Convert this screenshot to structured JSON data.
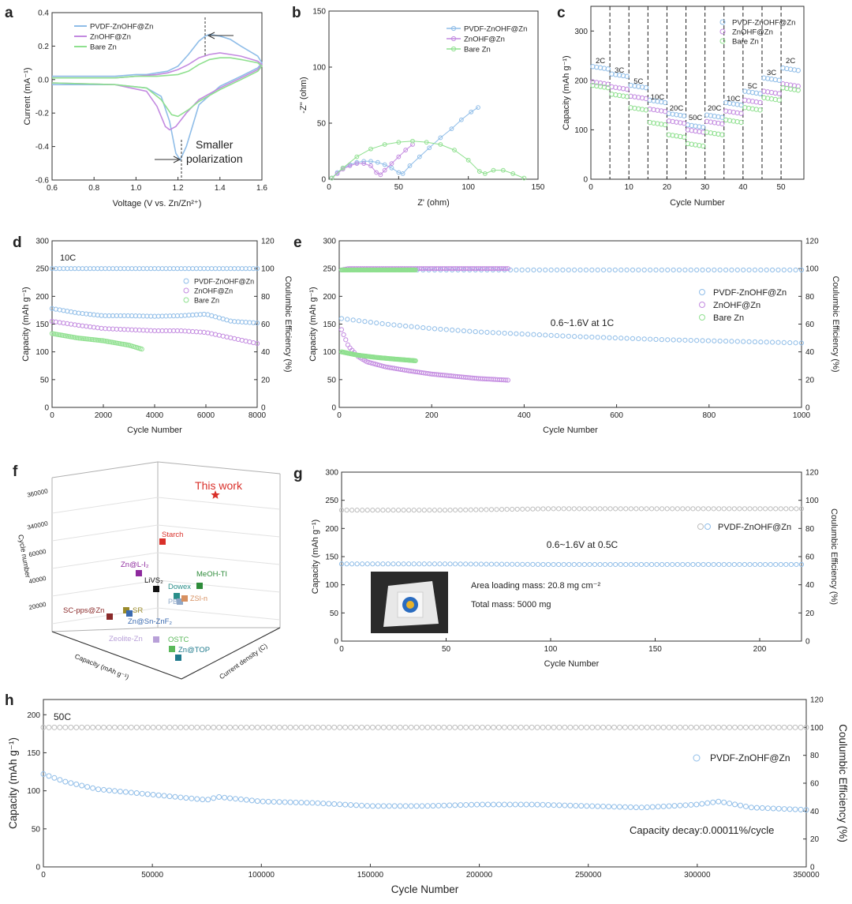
{
  "colors": {
    "pvdf": "#8fbde8",
    "znohf": "#c38ae0",
    "bare": "#8fe08f",
    "text": "#222222",
    "ce": "#bdbdbd",
    "red": "#d9302a"
  },
  "chart_data": [
    {
      "panel": "a",
      "type": "line",
      "xlabel": "Voltage (V vs. Zn/Zn²⁺)",
      "ylabel": "Current (mA⁻¹)",
      "xlim": [
        0.6,
        1.6
      ],
      "ylim": [
        -0.6,
        0.4
      ],
      "xticks": [
        "0.6",
        "0.8",
        "1.0",
        "1.2",
        "1.4",
        "1.6"
      ],
      "yticks": [
        "0.4",
        "0.2",
        "0.0",
        "-0.2",
        "-0.4",
        "-0.6"
      ],
      "annotation": [
        "Smaller",
        "polarization"
      ],
      "legend": "top-left",
      "series": [
        {
          "name": "PVDF-ZnOHF@Zn",
          "color_key": "pvdf",
          "x": [
            0.6,
            0.9,
            1.05,
            1.12,
            1.16,
            1.19,
            1.21,
            1.24,
            1.3,
            1.4,
            1.5,
            1.58,
            1.6,
            1.58,
            1.5,
            1.45,
            1.4,
            1.35,
            1.33,
            1.3,
            1.25,
            1.2,
            1.15,
            1.1,
            1.05,
            1.0,
            0.9,
            0.6
          ],
          "y": [
            -0.03,
            -0.03,
            -0.05,
            -0.1,
            -0.25,
            -0.44,
            -0.48,
            -0.4,
            -0.15,
            -0.04,
            0.02,
            0.07,
            0.1,
            0.14,
            0.2,
            0.24,
            0.26,
            0.27,
            0.26,
            0.23,
            0.15,
            0.08,
            0.05,
            0.04,
            0.03,
            0.03,
            0.02,
            0.02
          ]
        },
        {
          "name": "ZnOHF@Zn",
          "color_key": "znohf",
          "x": [
            0.6,
            0.9,
            1.05,
            1.1,
            1.14,
            1.16,
            1.19,
            1.24,
            1.3,
            1.4,
            1.5,
            1.58,
            1.6,
            1.58,
            1.5,
            1.45,
            1.4,
            1.35,
            1.3,
            1.25,
            1.2,
            1.15,
            1.1,
            1.0,
            0.9,
            0.6
          ],
          "y": [
            -0.02,
            -0.03,
            -0.07,
            -0.16,
            -0.28,
            -0.3,
            -0.28,
            -0.2,
            -0.12,
            -0.05,
            0.01,
            0.06,
            0.09,
            0.11,
            0.14,
            0.15,
            0.16,
            0.15,
            0.13,
            0.09,
            0.06,
            0.04,
            0.03,
            0.02,
            0.01,
            0.01
          ]
        },
        {
          "name": "Bare Zn",
          "color_key": "bare",
          "x": [
            0.6,
            0.9,
            1.05,
            1.12,
            1.17,
            1.2,
            1.25,
            1.3,
            1.4,
            1.5,
            1.58,
            1.6,
            1.58,
            1.5,
            1.45,
            1.4,
            1.35,
            1.3,
            1.25,
            1.2,
            1.1,
            1.0,
            0.9,
            0.6
          ],
          "y": [
            -0.02,
            -0.03,
            -0.05,
            -0.12,
            -0.21,
            -0.22,
            -0.18,
            -0.13,
            -0.06,
            0.0,
            0.05,
            0.08,
            0.1,
            0.12,
            0.13,
            0.13,
            0.12,
            0.09,
            0.05,
            0.03,
            0.02,
            0.02,
            0.01,
            0.01
          ]
        }
      ]
    },
    {
      "panel": "b",
      "type": "scatter",
      "xlabel": "Z' (ohm)",
      "ylabel": "-Z'' (ohm)",
      "xlim": [
        0,
        150
      ],
      "ylim": [
        0,
        150
      ],
      "xticks": [
        "0",
        "50",
        "100",
        "150"
      ],
      "yticks": [
        "150",
        "100",
        "50",
        "0"
      ],
      "legend": "top-right",
      "series": [
        {
          "name": "PVDF-ZnOHF@Zn",
          "color_key": "pvdf",
          "x": [
            2,
            6,
            10,
            15,
            20,
            25,
            30,
            35,
            40,
            45,
            50,
            53,
            58,
            65,
            72,
            80,
            88,
            95,
            102,
            107
          ],
          "y": [
            1,
            6,
            10,
            13,
            15,
            16,
            16,
            15,
            13,
            10,
            6,
            5,
            12,
            20,
            28,
            37,
            45,
            53,
            60,
            64
          ]
        },
        {
          "name": "ZnOHF@Zn",
          "color_key": "znohf",
          "x": [
            2,
            6,
            10,
            15,
            20,
            25,
            30,
            34,
            37,
            40,
            45,
            50,
            55,
            60
          ],
          "y": [
            1,
            5,
            9,
            12,
            14,
            14,
            12,
            6,
            4,
            8,
            14,
            20,
            26,
            31
          ]
        },
        {
          "name": "Bare Zn",
          "color_key": "bare",
          "x": [
            2,
            10,
            20,
            30,
            40,
            50,
            60,
            70,
            80,
            90,
            100,
            108,
            112,
            118,
            125,
            132,
            140
          ],
          "y": [
            1,
            10,
            20,
            27,
            31,
            33,
            34,
            33,
            31,
            26,
            17,
            7,
            5,
            8,
            8,
            5,
            1
          ]
        }
      ]
    },
    {
      "panel": "c",
      "type": "scatter",
      "xlabel": "Cycle Number",
      "ylabel": "Capacity (mAh g⁻¹)",
      "xlim": [
        0,
        56
      ],
      "ylim": [
        0,
        350
      ],
      "xticks": [
        "0",
        "10",
        "20",
        "30",
        "40",
        "50"
      ],
      "yticks": [
        "300",
        "200",
        "100",
        "0"
      ],
      "rate_labels": [
        "2C",
        "3C",
        "5C",
        "10C",
        "20C",
        "50C",
        "20C",
        "10C",
        "5C",
        "3C",
        "2C"
      ],
      "legend": "top-right",
      "series": [
        {
          "name": "PVDF-ZnOHF@Zn",
          "color_key": "pvdf",
          "segment_values": [
            228,
            213,
            190,
            160,
            133,
            110,
            130,
            155,
            178,
            205,
            225
          ]
        },
        {
          "name": "ZnOHF@Zn",
          "color_key": "znohf",
          "segment_values": [
            197,
            187,
            168,
            142,
            118,
            100,
            117,
            138,
            160,
            178,
            193
          ]
        },
        {
          "name": "Bare Zn",
          "color_key": "bare",
          "segment_values": [
            190,
            172,
            145,
            115,
            90,
            72,
            95,
            120,
            145,
            165,
            185
          ]
        }
      ]
    },
    {
      "panel": "d",
      "type": "scatter",
      "annotation": "10C",
      "xlabel": "Cycle Number",
      "ylabel": "Capacity (mAh g⁻¹)",
      "y2label": "Coulumbic Efficiency (%)",
      "xlim": [
        0,
        8000
      ],
      "ylim": [
        0,
        300
      ],
      "y2lim": [
        0,
        120
      ],
      "xticks": [
        "0",
        "2000",
        "4000",
        "6000",
        "8000"
      ],
      "yticks": [
        "300",
        "250",
        "200",
        "150",
        "100",
        "50",
        "0"
      ],
      "y2ticks": [
        "120",
        "100",
        "80",
        "60",
        "40",
        "20",
        "0"
      ],
      "legend": "right",
      "series": [
        {
          "name": "PVDF-ZnOHF@Zn",
          "color_key": "pvdf",
          "x": [
            0,
            1000,
            2000,
            3000,
            4000,
            5000,
            6000,
            7000,
            8000
          ],
          "capacity": [
            178,
            170,
            165,
            165,
            164,
            165,
            168,
            155,
            152
          ],
          "efficiency": [
            100,
            100,
            100,
            100,
            100,
            100,
            100,
            100,
            100
          ]
        },
        {
          "name": "ZnOHF@Zn",
          "color_key": "znohf",
          "x": [
            0,
            1000,
            2000,
            3000,
            4000,
            5000,
            6000,
            7000,
            8000
          ],
          "capacity": [
            155,
            148,
            142,
            140,
            138,
            138,
            135,
            125,
            115
          ]
        },
        {
          "name": "Bare Zn",
          "color_key": "bare",
          "x": [
            0,
            1000,
            2000,
            3000,
            3500
          ],
          "capacity": [
            133,
            125,
            120,
            112,
            105
          ]
        }
      ]
    },
    {
      "panel": "e",
      "type": "scatter",
      "annotation": "0.6~1.6V at 1C",
      "xlabel": "Cycle Number",
      "ylabel": "Capacity (mAh g⁻¹)",
      "y2label": "Coulumbic Efficiency (%)",
      "xlim": [
        0,
        1000
      ],
      "ylim": [
        0,
        300
      ],
      "y2lim": [
        0,
        120
      ],
      "xticks": [
        "0",
        "200",
        "400",
        "600",
        "800",
        "1000"
      ],
      "yticks": [
        "300",
        "250",
        "200",
        "150",
        "100",
        "50",
        "0"
      ],
      "y2ticks": [
        "120",
        "100",
        "80",
        "60",
        "40",
        "20",
        "0"
      ],
      "legend": "right",
      "series": [
        {
          "name": "PVDF-ZnOHF@Zn",
          "color_key": "pvdf",
          "x": [
            5,
            100,
            200,
            300,
            400,
            500,
            600,
            700,
            800,
            900,
            1000
          ],
          "capacity": [
            160,
            150,
            142,
            136,
            132,
            128,
            125,
            122,
            120,
            118,
            116
          ],
          "efficiency": [
            99,
            99,
            99,
            99,
            99,
            99,
            99,
            99,
            99,
            99,
            99
          ]
        },
        {
          "name": "ZnOHF@Zn",
          "color_key": "znohf",
          "x": [
            5,
            20,
            40,
            60,
            100,
            150,
            200,
            250,
            300,
            365
          ],
          "capacity": [
            140,
            110,
            92,
            82,
            73,
            66,
            60,
            56,
            52,
            49
          ],
          "efficiency": [
            99,
            100,
            100,
            100,
            100,
            100,
            100,
            100,
            100,
            100
          ]
        },
        {
          "name": "Bare Zn",
          "color_key": "bare",
          "x": [
            5,
            40,
            80,
            120,
            165
          ],
          "capacity": [
            100,
            94,
            90,
            87,
            84
          ],
          "efficiency": [
            99,
            99,
            99,
            99,
            99
          ]
        }
      ]
    },
    {
      "panel": "f",
      "type": "scatter",
      "xlabel": "Capacity (mAh g⁻¹)",
      "ylabel": "Cycle number",
      "zlabel": "Current density (C)",
      "zticks": [
        "20000",
        "40000",
        "60000",
        "340000",
        "360000"
      ],
      "points": [
        {
          "label": "This work",
          "color": "#d9302a",
          "marker": "star"
        },
        {
          "label": "Starch",
          "color": "#d9302a"
        },
        {
          "label": "Zn@L-I₂",
          "color": "#8e2a9e"
        },
        {
          "label": "MeOH-TI",
          "color": "#2e8b3a"
        },
        {
          "label": "LiVS₂",
          "color": "#111111"
        },
        {
          "label": "Dowex",
          "color": "#2a8f8a"
        },
        {
          "label": "PBI",
          "color": "#8fa8c8"
        },
        {
          "label": "ZSI-n",
          "color": "#d79060"
        },
        {
          "label": "SC-pps@Zn",
          "color": "#8a2a2a"
        },
        {
          "label": "SR",
          "color": "#9a8a2a"
        },
        {
          "label": "Zn@Sn-ZnF₂",
          "color": "#3a6ab0"
        },
        {
          "label": "Zeolite-Zn",
          "color": "#b8a0d8"
        },
        {
          "label": "OSTC",
          "color": "#5ab85a"
        },
        {
          "label": "Zn@TOP",
          "color": "#1f7a8c"
        }
      ]
    },
    {
      "panel": "g",
      "type": "scatter",
      "annotation": "0.6~1.6V at 0.5C",
      "info": [
        "Area loading mass: 20.8 mg cm⁻²",
        "Total mass:  5000 mg"
      ],
      "xlabel": "Cycle Number",
      "ylabel": "Capacity (mAh g⁻¹)",
      "y2label": "Coulumbic Efficiency (%)",
      "xlim": [
        0,
        220
      ],
      "ylim": [
        0,
        300
      ],
      "y2lim": [
        0,
        120
      ],
      "xticks": [
        "0",
        "50",
        "100",
        "150",
        "200"
      ],
      "yticks": [
        "300",
        "250",
        "200",
        "150",
        "100",
        "50",
        "0"
      ],
      "y2ticks": [
        "120",
        "100",
        "80",
        "60",
        "40",
        "20",
        "0"
      ],
      "legend": "right",
      "series": [
        {
          "name": "PVDF-ZnOHF@Zn",
          "color_key": "pvdf",
          "x": [
            0,
            50,
            100,
            150,
            220
          ],
          "capacity": [
            137,
            137,
            136,
            136,
            136
          ],
          "efficiency": [
            93,
            93,
            94,
            94,
            94
          ]
        }
      ]
    },
    {
      "panel": "h",
      "type": "scatter",
      "annotation": "50C",
      "note": "Capacity decay:0.00011%/cycle",
      "xlabel": "Cycle Number",
      "ylabel": "Capacity (mAh g⁻¹)",
      "y2label": "Coulumbic Efficiency (%)",
      "xlim": [
        0,
        350000
      ],
      "ylim": [
        0,
        220
      ],
      "y2lim": [
        0,
        120
      ],
      "xticks": [
        "0",
        "50000",
        "100000",
        "150000",
        "200000",
        "250000",
        "300000",
        "350000"
      ],
      "yticks": [
        "200",
        "150",
        "100",
        "50",
        "0"
      ],
      "y2ticks": [
        "120",
        "100",
        "80",
        "60",
        "40",
        "20",
        "0"
      ],
      "legend": "right",
      "series": [
        {
          "name": "PVDF-ZnOHF@Zn",
          "color_key": "pvdf",
          "x": [
            0,
            10000,
            25000,
            50000,
            75000,
            80000,
            100000,
            125000,
            150000,
            175000,
            200000,
            225000,
            250000,
            275000,
            300000,
            310000,
            325000,
            350000
          ],
          "capacity": [
            122,
            112,
            102,
            95,
            88,
            92,
            86,
            84,
            80,
            80,
            82,
            82,
            80,
            78,
            82,
            86,
            78,
            75
          ],
          "efficiency": [
            100,
            100,
            100,
            100,
            100,
            100,
            100,
            100,
            100,
            100,
            100,
            100,
            100,
            100,
            100,
            100,
            100,
            100
          ]
        }
      ]
    }
  ]
}
